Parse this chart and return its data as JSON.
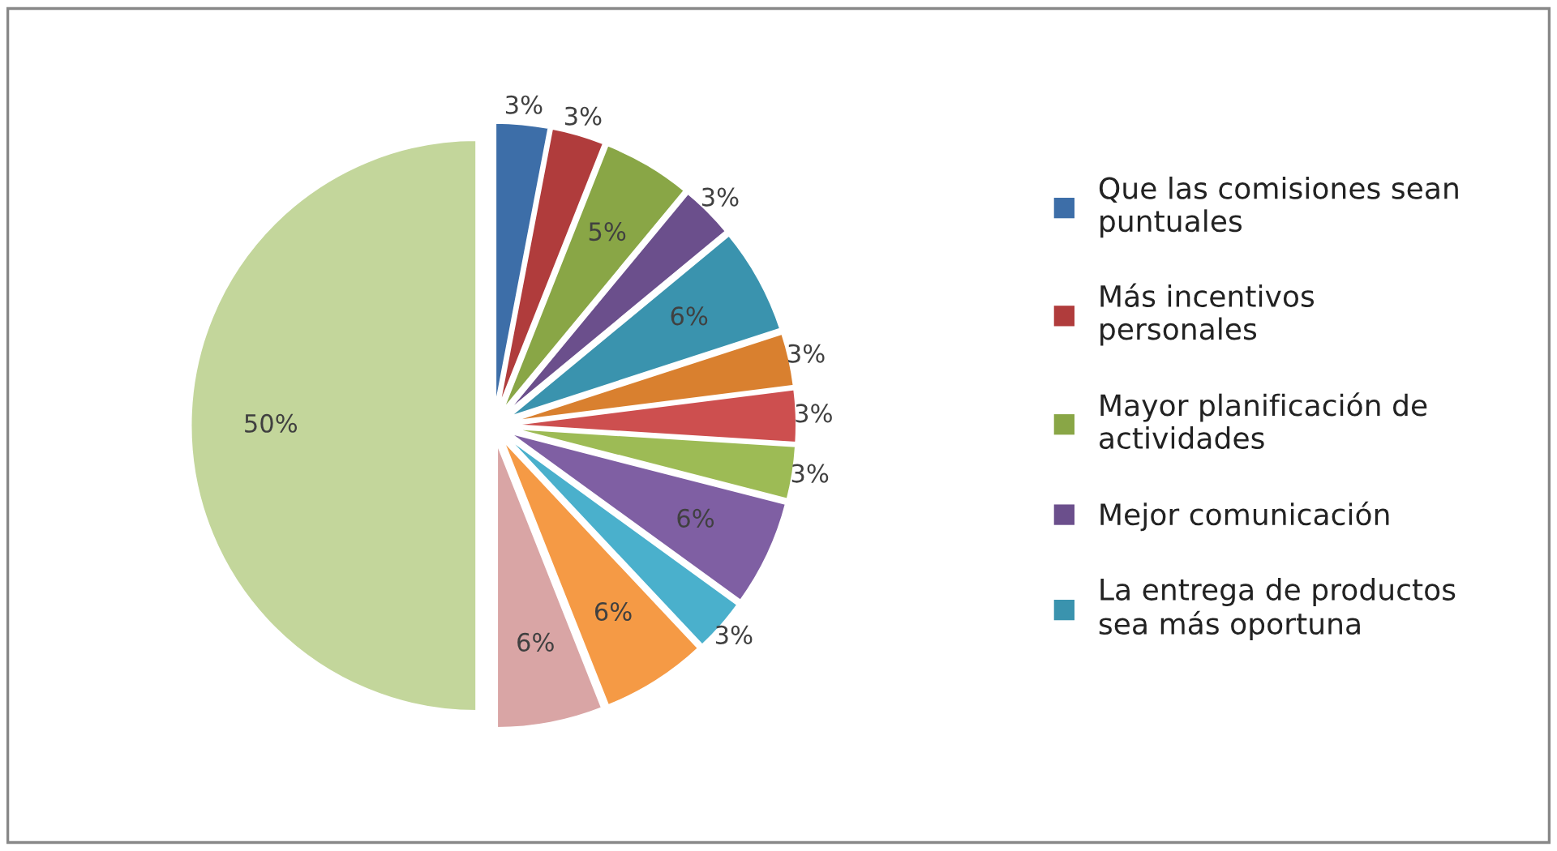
{
  "chart_data": {
    "type": "pie",
    "categories": [
      "Que las comisiones sean puntuales",
      "Más incentivos personales",
      "Mayor planificación de actividades",
      "Mejor comunicación",
      "La entrega de productos sea más oportuna",
      null,
      null,
      null,
      null,
      null,
      null,
      null,
      null
    ],
    "values": [
      3,
      3,
      5,
      3,
      6,
      3,
      3,
      3,
      6,
      3,
      6,
      6,
      50
    ],
    "value_labels": [
      "3%",
      "3%",
      "5%",
      "3%",
      "6%",
      "3%",
      "3%",
      "3%",
      "6%",
      "3%",
      "6%",
      "6%",
      "50%"
    ],
    "colors": [
      "#3d6ea8",
      "#b03c3c",
      "#89a646",
      "#6b4f8c",
      "#3a93ae",
      "#d9802f",
      "#cd4f4f",
      "#9dbb55",
      "#7f5fa3",
      "#4ab0cc",
      "#f59a45",
      "#d9a5a5",
      "#c3d69b"
    ],
    "legend": "right"
  }
}
